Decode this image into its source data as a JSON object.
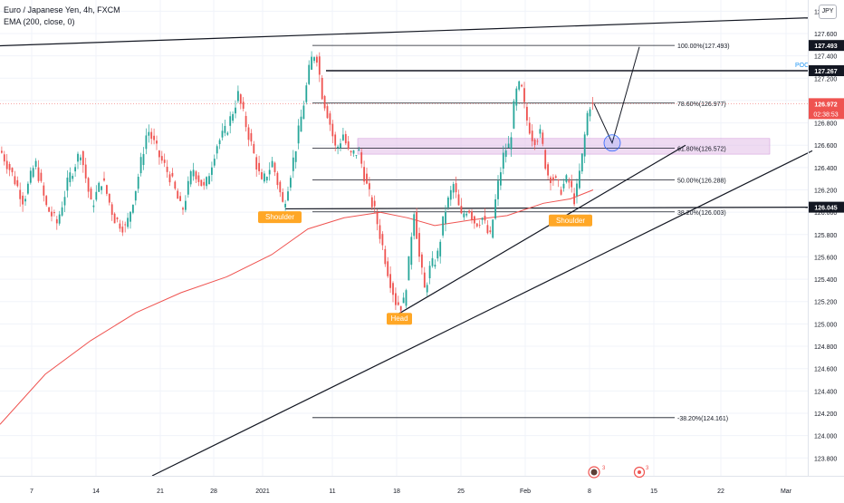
{
  "header": {
    "symbol_line": "Euro / Japanese Yen, 4h, FXCM",
    "indicator_line": "EMA (200, close, 0)",
    "currency": "JPY"
  },
  "colors": {
    "up": "#26a69a",
    "down": "#ef5350",
    "ema": "#ef5350",
    "zone": "#e1bee7",
    "price_badge": "#ef5350",
    "level_badge": "#131722",
    "poc": "#2196f3",
    "circle": "#2962ff"
  },
  "chart_data": {
    "type": "candlestick",
    "ylim": [
      123.64,
      127.9
    ],
    "y_ticks": [
      "127.800",
      "127.600",
      "127.400",
      "127.200",
      "127.000",
      "126.800",
      "126.600",
      "126.400",
      "126.200",
      "126.000",
      "125.800",
      "125.600",
      "125.400",
      "125.200",
      "125.000",
      "124.800",
      "124.600",
      "124.400",
      "124.200",
      "124.000",
      "123.800"
    ],
    "x_ticks": [
      "7",
      "14",
      "21",
      "28",
      "2021",
      "11",
      "18",
      "25",
      "Feb",
      "8",
      "15",
      "22",
      "Mar"
    ],
    "price_path": [
      [
        0,
        126.55
      ],
      [
        12,
        126.35
      ],
      [
        25,
        126.1
      ],
      [
        38,
        126.45
      ],
      [
        50,
        126.05
      ],
      [
        62,
        125.9
      ],
      [
        75,
        126.3
      ],
      [
        88,
        126.55
      ],
      [
        100,
        126.05
      ],
      [
        112,
        126.3
      ],
      [
        125,
        125.95
      ],
      [
        138,
        125.85
      ],
      [
        150,
        126.25
      ],
      [
        162,
        126.75
      ],
      [
        175,
        126.5
      ],
      [
        188,
        126.3
      ],
      [
        200,
        126.0
      ],
      [
        212,
        126.4
      ],
      [
        225,
        126.2
      ],
      [
        238,
        126.6
      ],
      [
        250,
        126.75
      ],
      [
        262,
        127.05
      ],
      [
        275,
        126.65
      ],
      [
        288,
        126.25
      ],
      [
        300,
        126.45
      ],
      [
        312,
        126.05
      ],
      [
        325,
        126.55
      ],
      [
        335,
        127.0
      ],
      [
        342,
        127.35
      ],
      [
        348,
        127.45
      ],
      [
        355,
        127.05
      ],
      [
        362,
        126.85
      ],
      [
        370,
        126.55
      ],
      [
        378,
        126.7
      ],
      [
        385,
        126.5
      ],
      [
        395,
        126.55
      ],
      [
        405,
        126.2
      ],
      [
        413,
        126.0
      ],
      [
        420,
        125.75
      ],
      [
        428,
        125.45
      ],
      [
        436,
        125.2
      ],
      [
        444,
        125.15
      ],
      [
        450,
        125.5
      ],
      [
        456,
        126.05
      ],
      [
        462,
        125.6
      ],
      [
        468,
        125.3
      ],
      [
        474,
        125.5
      ],
      [
        482,
        125.6
      ],
      [
        490,
        126.0
      ],
      [
        500,
        126.25
      ],
      [
        508,
        125.95
      ],
      [
        516,
        126.05
      ],
      [
        524,
        125.9
      ],
      [
        532,
        125.95
      ],
      [
        540,
        125.75
      ],
      [
        548,
        126.2
      ],
      [
        556,
        126.55
      ],
      [
        562,
        126.6
      ],
      [
        568,
        127.05
      ],
      [
        574,
        127.15
      ],
      [
        580,
        126.85
      ],
      [
        588,
        126.65
      ],
      [
        596,
        126.7
      ],
      [
        603,
        126.35
      ],
      [
        610,
        126.3
      ],
      [
        618,
        126.2
      ],
      [
        626,
        126.3
      ],
      [
        634,
        126.1
      ],
      [
        642,
        126.5
      ],
      [
        648,
        126.9
      ],
      [
        652,
        127.0
      ],
      [
        656,
        126.85
      ]
    ],
    "ema_points": [
      [
        0,
        124.1
      ],
      [
        50,
        124.55
      ],
      [
        100,
        124.85
      ],
      [
        150,
        125.1
      ],
      [
        200,
        125.28
      ],
      [
        250,
        125.42
      ],
      [
        300,
        125.62
      ],
      [
        340,
        125.85
      ],
      [
        380,
        125.95
      ],
      [
        420,
        126.0
      ],
      [
        450,
        125.95
      ],
      [
        480,
        125.88
      ],
      [
        520,
        125.93
      ],
      [
        560,
        125.97
      ],
      [
        600,
        126.08
      ],
      [
        630,
        126.12
      ],
      [
        655,
        126.2
      ]
    ],
    "fib_levels": [
      {
        "label": "100.00%(127.493)",
        "value": 127.493
      },
      {
        "label": "78.60%(126.977)",
        "value": 126.977
      },
      {
        "label": "61.80%(126.572)",
        "value": 126.572
      },
      {
        "label": "50.00%(126.288)",
        "value": 126.288
      },
      {
        "label": "38.20%(126.003)",
        "value": 126.003
      },
      {
        "label": "-38.20%(124.161)",
        "value": 124.161
      }
    ],
    "price_badges": [
      {
        "label": "127.493",
        "value": 127.493
      },
      {
        "label": "127.267",
        "value": 127.267
      },
      {
        "label": "126.045",
        "value": 126.045
      }
    ],
    "current_price": {
      "label": "126.972",
      "countdown": "02:38:53",
      "value": 126.972
    },
    "poc": {
      "label": "POC",
      "value": 127.267
    },
    "zone": {
      "from": 126.52,
      "to": 126.66
    },
    "head_and_shoulders": [
      {
        "label": "Shoulder",
        "x": 309,
        "value": 125.96
      },
      {
        "label": "Head",
        "x": 441,
        "value": 125.05
      },
      {
        "label": "Shoulder",
        "x": 630,
        "value": 125.93
      }
    ],
    "trendlines": [
      {
        "name": "top",
        "p1": [
          0,
          127.49
        ],
        "p2": [
          892,
          127.74
        ]
      },
      {
        "name": "lower",
        "p1": [
          168,
          123.64
        ],
        "p2": [
          897,
          126.55
        ]
      },
      {
        "name": "neckline",
        "p1": [
          440,
          125.09
        ],
        "p2": [
          757,
          126.6
        ]
      },
      {
        "name": "neck-flat",
        "p1": [
          315,
          126.03
        ],
        "p2": [
          892,
          126.045
        ]
      },
      {
        "name": "poc-line",
        "p1": [
          360,
          127.267
        ],
        "p2": [
          892,
          127.267
        ]
      }
    ],
    "projection": [
      [
        656,
        126.97
      ],
      [
        676,
        126.62
      ],
      [
        706,
        127.48
      ]
    ],
    "target_circle": [
      676,
      126.62
    ]
  }
}
